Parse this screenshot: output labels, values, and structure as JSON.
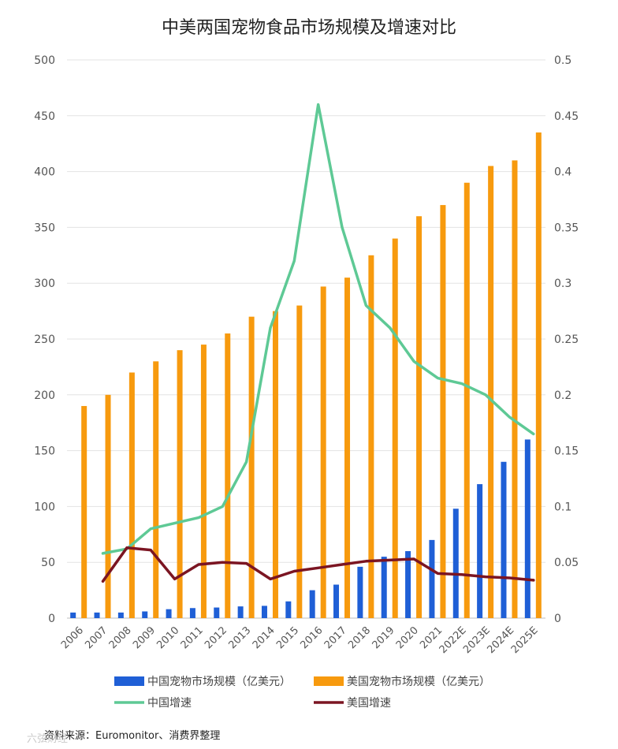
{
  "chart_data": {
    "type": "bar",
    "title": "中美两国宠物食品市场规模及增速对比",
    "categories": [
      "2006",
      "2007",
      "2008",
      "2009",
      "2010",
      "2011",
      "2012",
      "2013",
      "2014",
      "2015",
      "2016",
      "2017",
      "2018",
      "2019",
      "2020",
      "2021",
      "2022E",
      "2023E",
      "2024E",
      "2025E"
    ],
    "left_axis": {
      "min": 0,
      "max": 500,
      "ticks": [
        "0",
        "50",
        "100",
        "150",
        "200",
        "250",
        "300",
        "350",
        "400",
        "450",
        "500"
      ]
    },
    "right_axis": {
      "min": 0,
      "max": 0.5,
      "ticks": [
        "0",
        "0.05",
        "0.1",
        "0.15",
        "0.2",
        "0.25",
        "0.3",
        "0.35",
        "0.4",
        "0.45",
        "0.5"
      ]
    },
    "series": [
      {
        "name": "中国宠物市场规模（亿美元）",
        "kind": "bar",
        "axis": "left",
        "color": "#1f5fd6",
        "values": [
          5,
          5,
          5,
          6,
          8,
          9,
          9.5,
          10.5,
          11,
          15,
          25,
          30,
          46,
          55,
          60,
          70,
          98,
          120,
          140,
          160
        ]
      },
      {
        "name": "美国宠物市场规模（亿美元）",
        "kind": "bar",
        "axis": "left",
        "color": "#f79a0e",
        "values": [
          190,
          200,
          220,
          230,
          240,
          245,
          255,
          270,
          275,
          280,
          297,
          305,
          325,
          340,
          360,
          370,
          390,
          405,
          410,
          435
        ]
      },
      {
        "name": "中国增速",
        "kind": "line",
        "axis": "right",
        "color": "#5ec995",
        "values": [
          null,
          0.058,
          0.062,
          0.08,
          0.085,
          0.09,
          0.1,
          0.14,
          0.26,
          0.32,
          0.46,
          0.35,
          0.28,
          0.26,
          0.23,
          0.215,
          0.21,
          0.2,
          0.18,
          0.165
        ]
      },
      {
        "name": "美国增速",
        "kind": "line",
        "axis": "right",
        "color": "#7b1522",
        "values": [
          null,
          0.033,
          0.063,
          0.061,
          0.035,
          0.048,
          0.05,
          0.049,
          0.035,
          0.042,
          0.045,
          0.048,
          0.051,
          0.052,
          0.053,
          0.04,
          0.039,
          0.037,
          0.036,
          0.034
        ]
      }
    ],
    "legend_position": "bottom",
    "grid": true
  },
  "source": "资料来源：Euromonitor、消费界整理",
  "watermark": "六弦财经"
}
